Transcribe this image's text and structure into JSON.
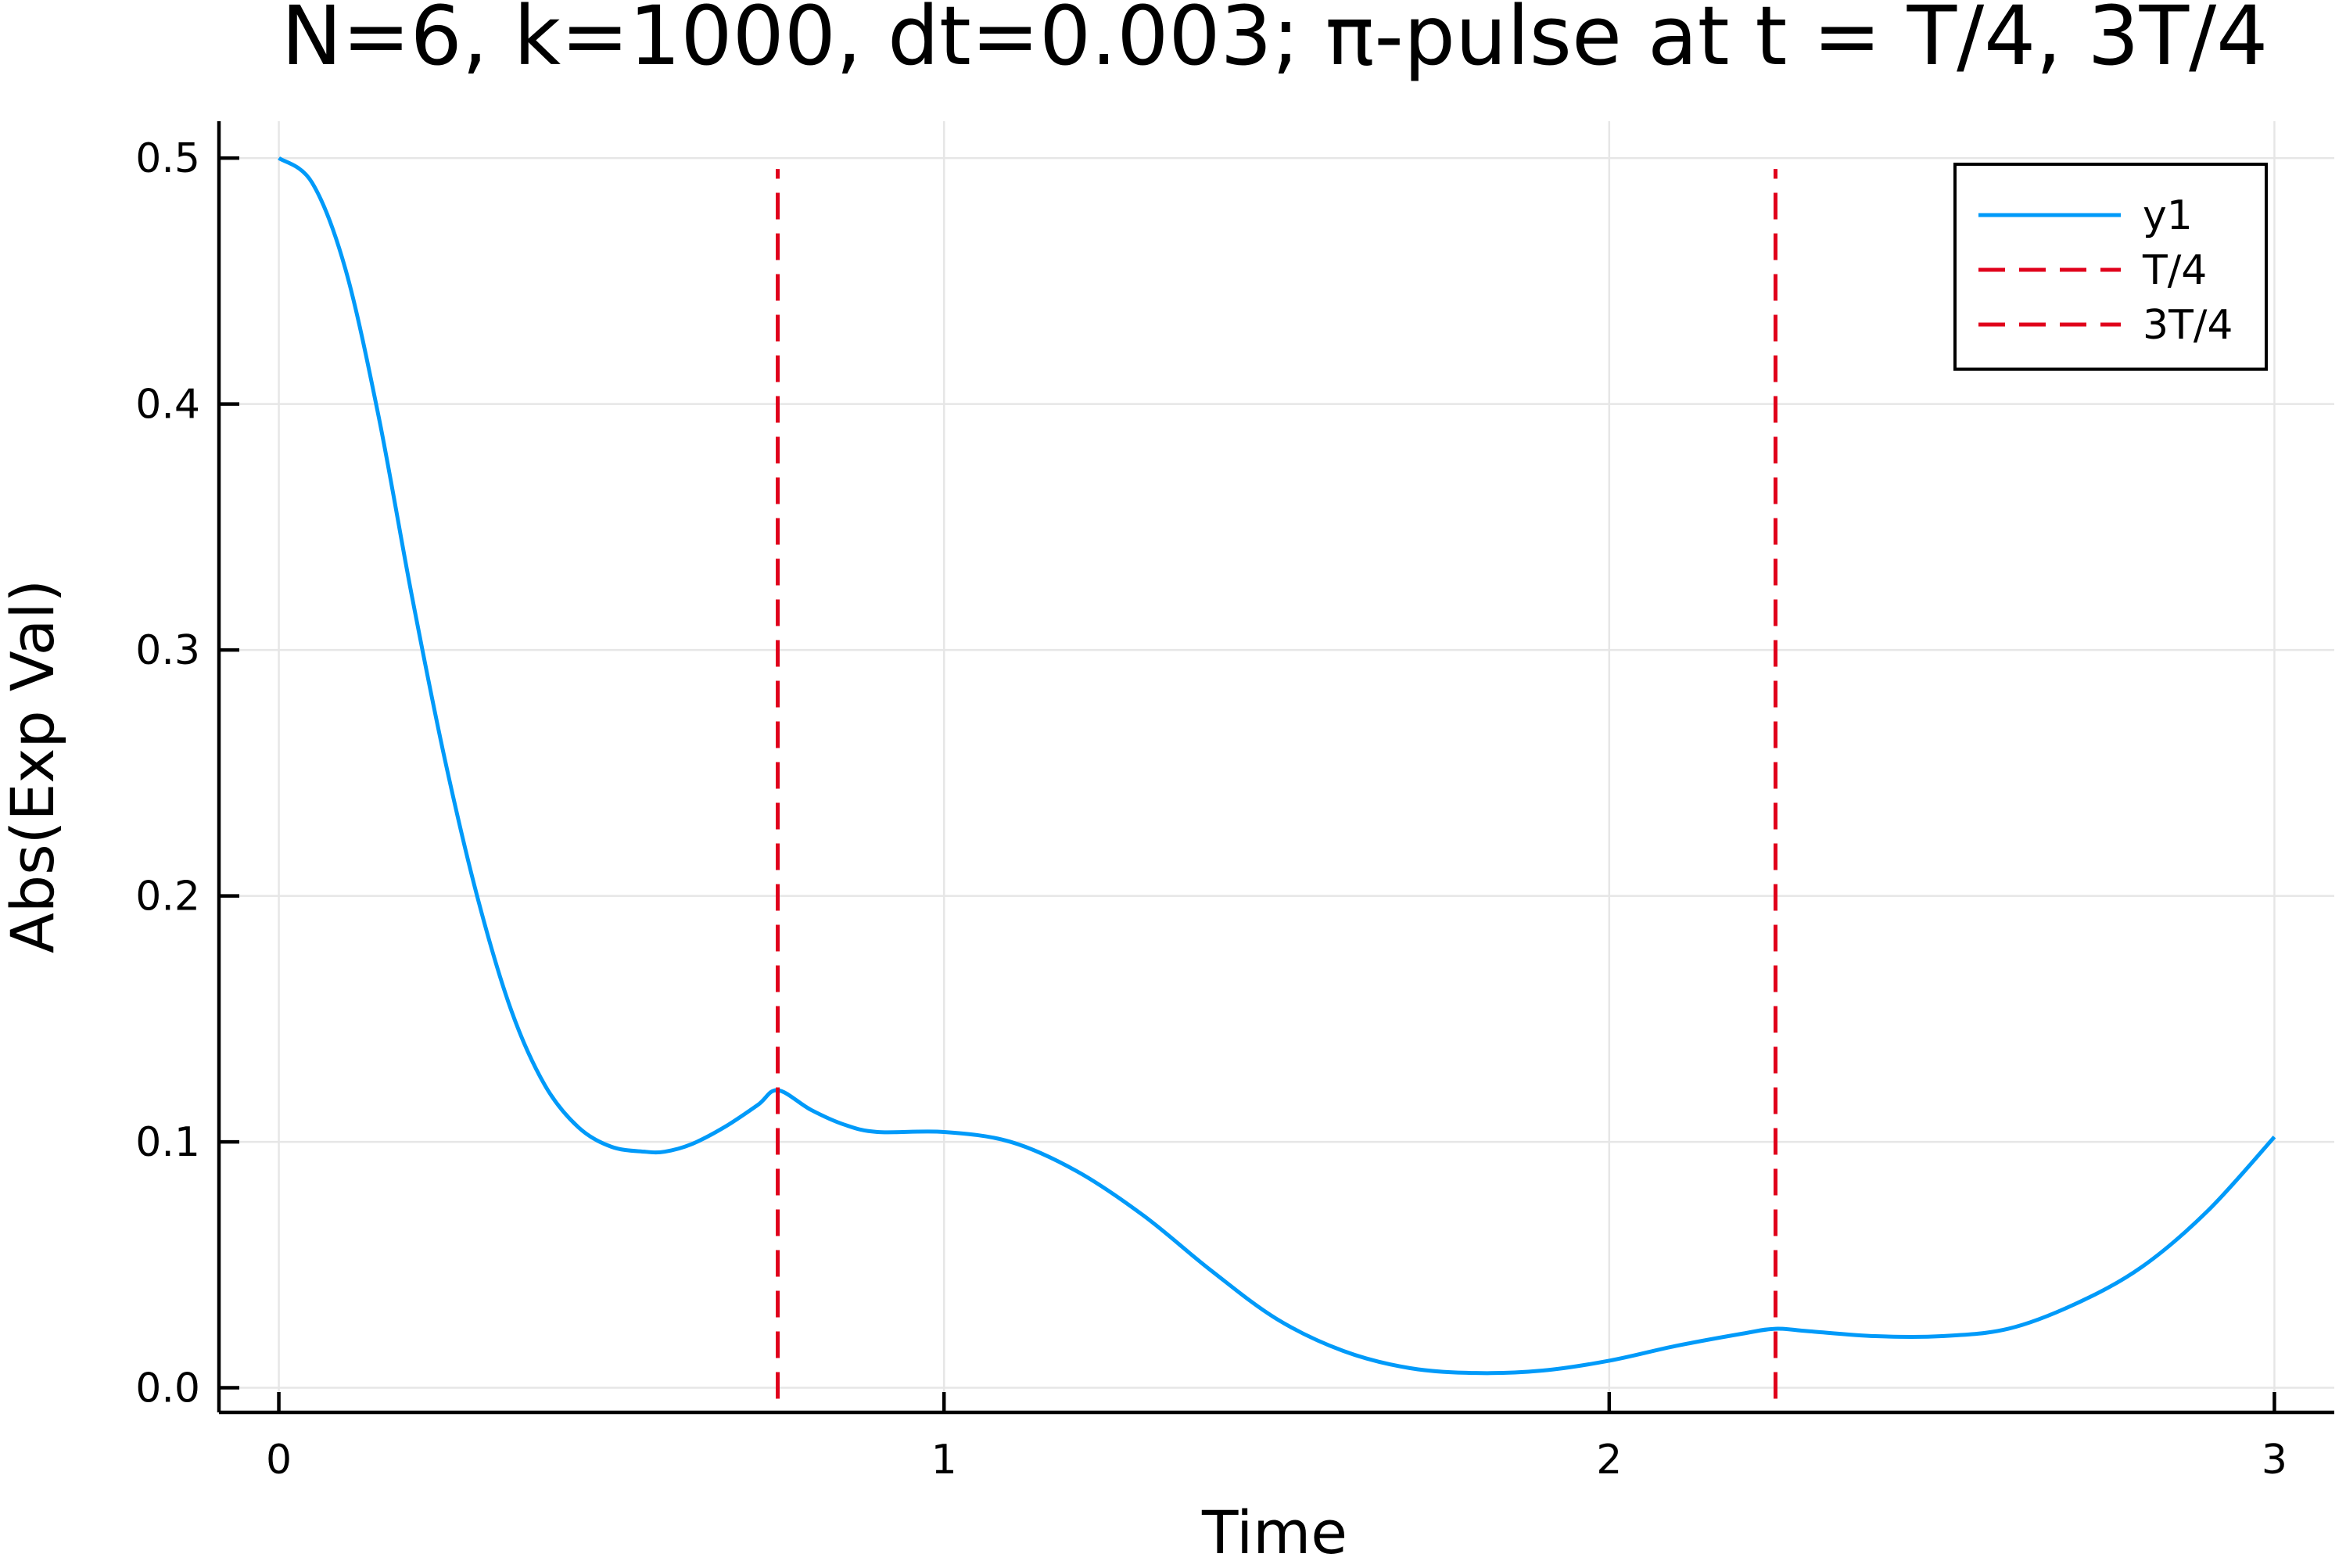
{
  "chart_data": {
    "type": "line",
    "title": "N=6, k=1000, dt=0.003; π-pulse at t = T/4, 3T/4",
    "xlabel": "Time",
    "ylabel": "Abs(Exp Val)",
    "xlim": [
      -0.09,
      3.09
    ],
    "ylim": [
      -0.01,
      0.515
    ],
    "x_ticks": [
      0,
      1,
      2,
      3
    ],
    "x_tick_labels": [
      "0",
      "1",
      "2",
      "3"
    ],
    "y_ticks": [
      0.0,
      0.1,
      0.2,
      0.3,
      0.4,
      0.5
    ],
    "y_tick_labels": [
      "0.0",
      "0.1",
      "0.2",
      "0.3",
      "0.4",
      "0.5"
    ],
    "grid": true,
    "legend_position": "top-right",
    "series": [
      {
        "name": "y1",
        "color": "#009af9",
        "style": "solid",
        "x": [
          0.0,
          0.05,
          0.1,
          0.15,
          0.2,
          0.25,
          0.3,
          0.35,
          0.4,
          0.45,
          0.5,
          0.55,
          0.58,
          0.62,
          0.67,
          0.72,
          0.75,
          0.8,
          0.85,
          0.9,
          1.0,
          1.1,
          1.2,
          1.3,
          1.4,
          1.5,
          1.6,
          1.7,
          1.8,
          1.9,
          2.0,
          2.1,
          2.2,
          2.25,
          2.3,
          2.4,
          2.5,
          2.6,
          2.7,
          2.8,
          2.9,
          3.0
        ],
        "y": [
          0.5,
          0.49,
          0.455,
          0.395,
          0.322,
          0.255,
          0.198,
          0.153,
          0.123,
          0.106,
          0.098,
          0.096,
          0.096,
          0.099,
          0.106,
          0.115,
          0.121,
          0.113,
          0.107,
          0.104,
          0.104,
          0.1,
          0.088,
          0.07,
          0.048,
          0.028,
          0.015,
          0.008,
          0.006,
          0.007,
          0.011,
          0.017,
          0.022,
          0.024,
          0.023,
          0.021,
          0.021,
          0.024,
          0.034,
          0.049,
          0.072,
          0.102
        ]
      },
      {
        "name": "T/4",
        "color": "#e0001b",
        "style": "dashed",
        "x": [
          0.75,
          0.75
        ],
        "y": [
          0.0,
          0.5
        ]
      },
      {
        "name": "3T/4",
        "color": "#e0001b",
        "style": "dashed",
        "x": [
          2.25,
          2.25
        ],
        "y": [
          0.0,
          0.5
        ]
      }
    ]
  }
}
